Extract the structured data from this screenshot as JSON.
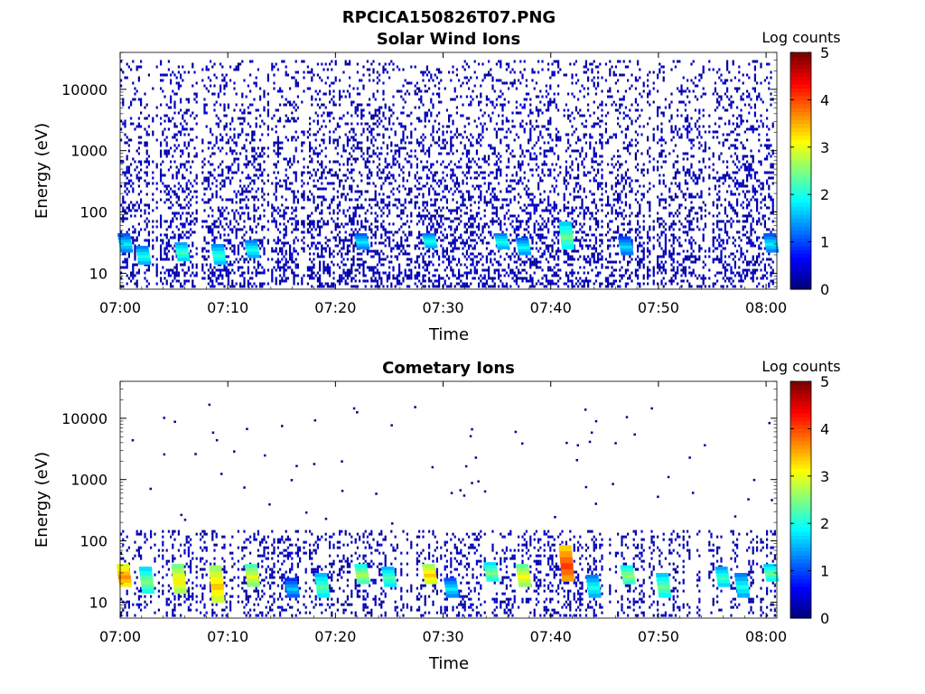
{
  "figure": {
    "title": "RPCICA150826T07.PNG"
  },
  "chart_data": [
    {
      "type": "heatmap",
      "title": "Solar Wind Ions",
      "xlabel": "Time",
      "ylabel": "Energy (eV)",
      "x_range": [
        "07:00",
        "08:01"
      ],
      "x_ticks": [
        "07:00",
        "07:10",
        "07:20",
        "07:30",
        "07:40",
        "07:50",
        "08:00"
      ],
      "y_scale": "log",
      "y_range": [
        5.5,
        40000
      ],
      "y_ticks": [
        "10",
        "100",
        "1000",
        "10000"
      ],
      "colorbar": {
        "label": "Log counts",
        "range": [
          0,
          5
        ],
        "ticks": [
          "0",
          "1",
          "2",
          "3",
          "4",
          "5"
        ],
        "colormap": "jet"
      },
      "background_noise": {
        "energy_range_eV": [
          6,
          30000
        ],
        "level_log_counts": [
          0,
          0.5
        ]
      },
      "patches": [
        {
          "t_min": 0.5,
          "e_min": 22,
          "e_max": 45,
          "value": 1.8
        },
        {
          "t_min": 2.2,
          "e_min": 14,
          "e_max": 28,
          "value": 2.0
        },
        {
          "t_min": 5.8,
          "e_min": 16,
          "e_max": 32,
          "value": 2.2
        },
        {
          "t_min": 9.2,
          "e_min": 14,
          "e_max": 30,
          "value": 2.1
        },
        {
          "t_min": 12.3,
          "e_min": 18,
          "e_max": 35,
          "value": 2.0
        },
        {
          "t_min": 22.5,
          "e_min": 25,
          "e_max": 45,
          "value": 1.8
        },
        {
          "t_min": 28.8,
          "e_min": 26,
          "e_max": 45,
          "value": 2.0
        },
        {
          "t_min": 35.5,
          "e_min": 25,
          "e_max": 45,
          "value": 2.0
        },
        {
          "t_min": 37.5,
          "e_min": 20,
          "e_max": 38,
          "value": 1.9
        },
        {
          "t_min": 41.5,
          "e_min": 25,
          "e_max": 70,
          "value": 2.4
        },
        {
          "t_min": 47.0,
          "e_min": 20,
          "e_max": 40,
          "value": 1.7
        },
        {
          "t_min": 60.5,
          "e_min": 22,
          "e_max": 45,
          "value": 1.8
        }
      ]
    },
    {
      "type": "heatmap",
      "title": "Cometary Ions",
      "xlabel": "Time",
      "ylabel": "Energy (eV)",
      "x_range": [
        "07:00",
        "08:01"
      ],
      "x_ticks": [
        "07:00",
        "07:10",
        "07:20",
        "07:30",
        "07:40",
        "07:50",
        "08:00"
      ],
      "y_scale": "log",
      "y_range": [
        5.5,
        40000
      ],
      "y_ticks": [
        "10",
        "100",
        "1000",
        "10000"
      ],
      "colorbar": {
        "label": "Log counts",
        "range": [
          0,
          5
        ],
        "ticks": [
          "0",
          "1",
          "2",
          "3",
          "4",
          "5"
        ],
        "colormap": "jet"
      },
      "background_noise": {
        "energy_range_eV": [
          6,
          150
        ],
        "level_log_counts": [
          0,
          0.5
        ]
      },
      "patches": [
        {
          "t_min": 0.4,
          "e_min": 18,
          "e_max": 42,
          "value": 3.7
        },
        {
          "t_min": 2.5,
          "e_min": 14,
          "e_max": 38,
          "value": 2.5
        },
        {
          "t_min": 5.5,
          "e_min": 14,
          "e_max": 42,
          "value": 3.2
        },
        {
          "t_min": 9.0,
          "e_min": 10,
          "e_max": 40,
          "value": 3.4
        },
        {
          "t_min": 12.3,
          "e_min": 18,
          "e_max": 42,
          "value": 3.0
        },
        {
          "t_min": 16.0,
          "e_min": 12,
          "e_max": 25,
          "value": 1.6
        },
        {
          "t_min": 18.8,
          "e_min": 12,
          "e_max": 30,
          "value": 2.3
        },
        {
          "t_min": 22.5,
          "e_min": 20,
          "e_max": 42,
          "value": 2.7
        },
        {
          "t_min": 25.0,
          "e_min": 18,
          "e_max": 38,
          "value": 2.3
        },
        {
          "t_min": 28.8,
          "e_min": 20,
          "e_max": 42,
          "value": 3.4
        },
        {
          "t_min": 30.8,
          "e_min": 12,
          "e_max": 25,
          "value": 1.8
        },
        {
          "t_min": 34.5,
          "e_min": 22,
          "e_max": 45,
          "value": 2.5
        },
        {
          "t_min": 37.5,
          "e_min": 18,
          "e_max": 42,
          "value": 3.1
        },
        {
          "t_min": 41.5,
          "e_min": 22,
          "e_max": 85,
          "value": 4.1
        },
        {
          "t_min": 44.0,
          "e_min": 12,
          "e_max": 28,
          "value": 2.0
        },
        {
          "t_min": 47.2,
          "e_min": 20,
          "e_max": 40,
          "value": 2.6
        },
        {
          "t_min": 50.5,
          "e_min": 12,
          "e_max": 30,
          "value": 2.4
        },
        {
          "t_min": 56.0,
          "e_min": 18,
          "e_max": 38,
          "value": 2.2
        },
        {
          "t_min": 57.8,
          "e_min": 12,
          "e_max": 30,
          "value": 2.0
        },
        {
          "t_min": 60.5,
          "e_min": 22,
          "e_max": 42,
          "value": 2.4
        }
      ]
    }
  ]
}
